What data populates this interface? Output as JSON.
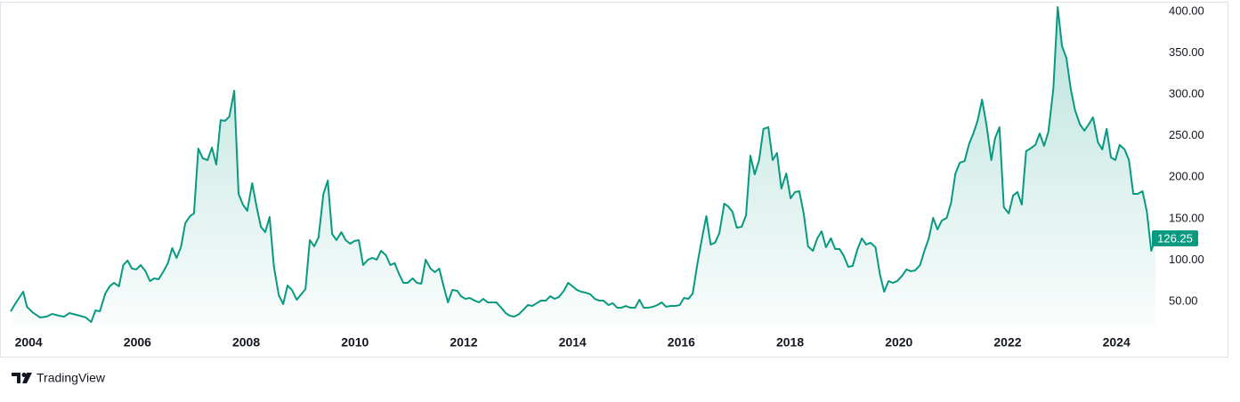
{
  "chart_data": {
    "type": "area",
    "x": [
      2003.67,
      2003.77,
      2003.9,
      2003.97,
      2004.07,
      2004.21,
      2004.33,
      2004.43,
      2004.56,
      2004.65,
      2004.75,
      2004.88,
      2005.05,
      2005.15,
      2005.23,
      2005.31,
      2005.41,
      2005.49,
      2005.57,
      2005.66,
      2005.74,
      2005.82,
      2005.9,
      2005.98,
      2006.06,
      2006.15,
      2006.23,
      2006.31,
      2006.39,
      2006.48,
      2006.56,
      2006.64,
      2006.72,
      2006.8,
      2006.88,
      2006.97,
      2007.04,
      2007.12,
      2007.2,
      2007.29,
      2007.37,
      2007.45,
      2007.53,
      2007.61,
      2007.69,
      2007.78,
      2007.86,
      2007.94,
      2008.02,
      2008.11,
      2008.19,
      2008.27,
      2008.35,
      2008.43,
      2008.51,
      2008.6,
      2008.68,
      2008.76,
      2008.84,
      2008.93,
      2009.01,
      2009.09,
      2009.17,
      2009.25,
      2009.33,
      2009.42,
      2009.5,
      2009.58,
      2009.66,
      2009.75,
      2009.83,
      2009.91,
      2009.99,
      2010.07,
      2010.15,
      2010.24,
      2010.32,
      2010.4,
      2010.48,
      2010.57,
      2010.65,
      2010.73,
      2010.81,
      2010.89,
      2010.97,
      2011.06,
      2011.14,
      2011.22,
      2011.3,
      2011.39,
      2011.47,
      2011.55,
      2011.63,
      2011.71,
      2011.79,
      2011.88,
      2011.95,
      2012.03,
      2012.11,
      2012.2,
      2012.28,
      2012.36,
      2012.44,
      2012.52,
      2012.6,
      2012.69,
      2012.77,
      2012.85,
      2012.93,
      2013.02,
      2013.1,
      2013.18,
      2013.26,
      2013.34,
      2013.42,
      2013.51,
      2013.59,
      2013.67,
      2013.75,
      2013.84,
      2013.92,
      2014,
      2014.08,
      2014.16,
      2014.24,
      2014.33,
      2014.41,
      2014.49,
      2014.57,
      2014.66,
      2014.74,
      2014.82,
      2014.9,
      2014.98,
      2015.06,
      2015.15,
      2015.23,
      2015.31,
      2015.39,
      2015.48,
      2015.56,
      2015.64,
      2015.72,
      2015.8,
      2015.88,
      2015.97,
      2016.05,
      2016.13,
      2016.21,
      2016.3,
      2016.38,
      2016.46,
      2016.54,
      2016.62,
      2016.7,
      2016.79,
      2016.86,
      2016.94,
      2017.02,
      2017.11,
      2017.19,
      2017.27,
      2017.35,
      2017.43,
      2017.51,
      2017.6,
      2017.68,
      2017.76,
      2017.84,
      2017.93,
      2018.01,
      2018.09,
      2018.17,
      2018.25,
      2018.33,
      2018.42,
      2018.5,
      2018.58,
      2018.66,
      2018.75,
      2018.83,
      2018.91,
      2018.99,
      2019.07,
      2019.15,
      2019.24,
      2019.32,
      2019.4,
      2019.48,
      2019.57,
      2019.65,
      2019.73,
      2019.81,
      2019.89,
      2019.97,
      2020.06,
      2020.14,
      2020.22,
      2020.3,
      2020.39,
      2020.47,
      2020.55,
      2020.63,
      2020.71,
      2020.79,
      2020.88,
      2020.96,
      2021.04,
      2021.12,
      2021.21,
      2021.29,
      2021.37,
      2021.45,
      2021.53,
      2021.61,
      2021.7,
      2021.77,
      2021.85,
      2021.93,
      2022.02,
      2022.1,
      2022.18,
      2022.26,
      2022.34,
      2022.42,
      2022.51,
      2022.59,
      2022.67,
      2022.75,
      2022.84,
      2022.92,
      2023,
      2023.08,
      2023.16,
      2023.24,
      2023.33,
      2023.41,
      2023.49,
      2023.57,
      2023.66,
      2023.74,
      2023.82,
      2023.9,
      2023.98,
      2024.06,
      2024.15,
      2024.23,
      2024.31,
      2024.39,
      2024.48,
      2024.56,
      2024.64,
      2024.72
    ],
    "series": [
      {
        "color": "#089981",
        "values": [
          38.2,
          48.9,
          61.8,
          43.6,
          37.1,
          30.7,
          31.7,
          35.0,
          32.8,
          31.7,
          36.0,
          33.9,
          30.7,
          25.3,
          39.3,
          38.2,
          59.7,
          68.3,
          72.5,
          68.3,
          94.0,
          99.4,
          89.7,
          88.7,
          94.0,
          86.5,
          74.7,
          77.9,
          76.8,
          86.5,
          96.2,
          114.4,
          102.6,
          115.5,
          144.5,
          153.1,
          156.3,
          234.7,
          222.9,
          220.7,
          235.8,
          215.3,
          269.0,
          268.0,
          273.3,
          304.5,
          179.9,
          167.0,
          159.5,
          192.8,
          164.9,
          140.2,
          133.7,
          152.0,
          91.9,
          57.5,
          46.8,
          69.3,
          64.0,
          52.1,
          58.6,
          65.0,
          124.1,
          116.6,
          127.3,
          179.9,
          196.0,
          131.6,
          124.1,
          133.7,
          124.1,
          119.8,
          123.0,
          124.1,
          94.0,
          100.5,
          102.6,
          100.5,
          111.2,
          105.8,
          94.0,
          96.2,
          83.3,
          72.5,
          72.5,
          77.9,
          72.5,
          71.5,
          100.5,
          89.7,
          85.4,
          89.7,
          68.3,
          48.9,
          64.0,
          62.9,
          56.4,
          53.2,
          54.3,
          51.1,
          48.9,
          53.2,
          48.9,
          48.9,
          48.9,
          42.5,
          36.0,
          32.8,
          31.7,
          35.0,
          40.3,
          45.7,
          44.6,
          47.9,
          51.1,
          51.1,
          56.4,
          53.2,
          55.4,
          62.9,
          72.5,
          68.3,
          64.0,
          61.8,
          60.7,
          58.6,
          53.2,
          51.1,
          51.1,
          45.7,
          47.9,
          42.5,
          42.5,
          44.6,
          42.5,
          42.5,
          52.1,
          42.5,
          42.5,
          43.6,
          45.7,
          48.9,
          43.6,
          44.6,
          44.6,
          45.7,
          54.3,
          53.2,
          59.7,
          97.2,
          126.2,
          153.1,
          118.7,
          120.9,
          132.7,
          168.1,
          164.9,
          158.4,
          139.1,
          140.2,
          154.1,
          226.1,
          203.5,
          220.7,
          258.3,
          260.4,
          220.7,
          229.3,
          186.4,
          204.6,
          174.5,
          182.1,
          183.1,
          156.3,
          116.6,
          111.2,
          126.2,
          134.8,
          115.5,
          126.2,
          113.3,
          113.3,
          104.8,
          91.9,
          92.9,
          113.3,
          126.2,
          118.7,
          120.9,
          115.5,
          83.3,
          61.8,
          74.7,
          72.5,
          74.7,
          81.1,
          88.7,
          86.5,
          87.6,
          94.0,
          111.2,
          126.2,
          150.9,
          137.0,
          147.7,
          150.9,
          169.2,
          204.6,
          217.5,
          219.6,
          240.0,
          252.9,
          269.0,
          293.7,
          263.7,
          220.7,
          247.6,
          260.4,
          163.8,
          156.3,
          177.8,
          182.1,
          167.0,
          231.5,
          234.7,
          239.0,
          252.9,
          237.9,
          255.1,
          306.6,
          405.4,
          358.1,
          344.2,
          306.6,
          280.8,
          263.7,
          256.2,
          263.7,
          272.3,
          242.2,
          233.6,
          258.3,
          223.9,
          220.7,
          239.0,
          233.6,
          220.7,
          179.9,
          179.9,
          183.1,
          158.4,
          111.2,
          126.25
        ]
      }
    ],
    "xlim": [
      2003.67,
      2024.75
    ],
    "xticks": [
      2004,
      2006,
      2008,
      2010,
      2012,
      2014,
      2016,
      2018,
      2020,
      2022,
      2024
    ],
    "ylim": [
      21,
      410
    ],
    "yticks": [
      {
        "value": 50,
        "label": "50.00"
      },
      {
        "value": 100,
        "label": "100.00"
      },
      {
        "value": 150,
        "label": "150.00"
      },
      {
        "value": 200,
        "label": "200.00"
      },
      {
        "value": 250,
        "label": "250.00"
      },
      {
        "value": 300,
        "label": "300.00"
      },
      {
        "value": 350,
        "label": "350.00"
      },
      {
        "value": 400,
        "label": "400.00"
      }
    ],
    "grid": false,
    "last_price_marker": true
  },
  "branding": "TradingView"
}
